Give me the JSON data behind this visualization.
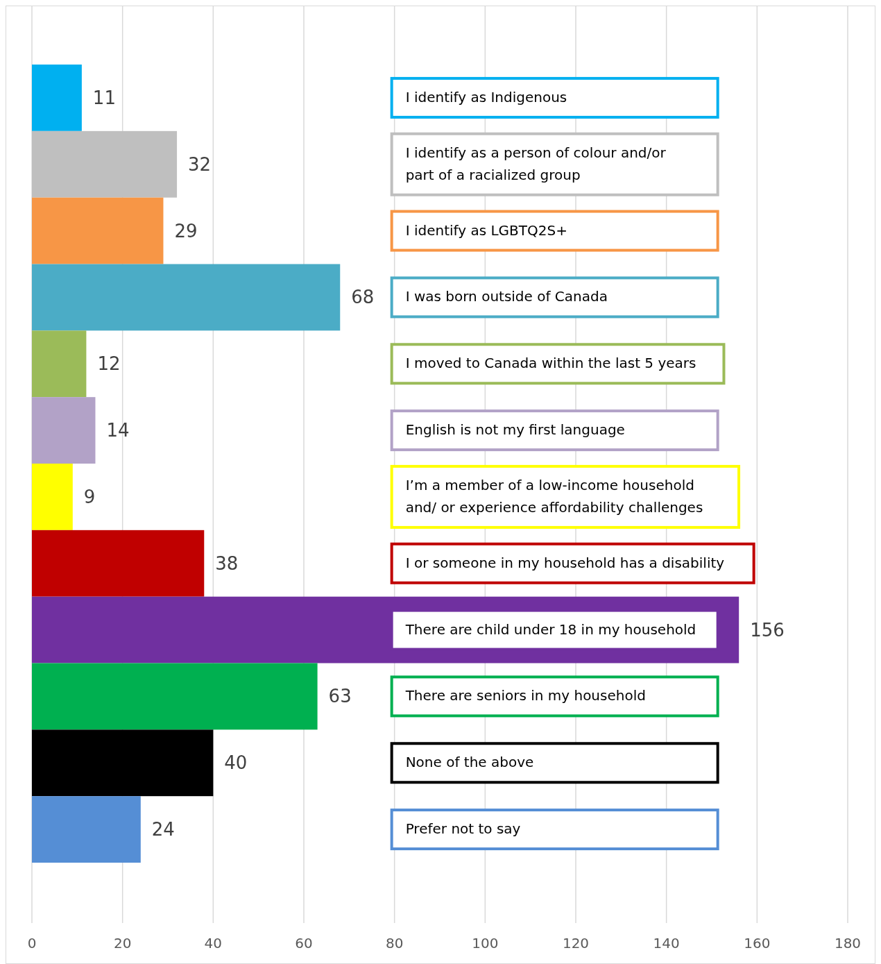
{
  "chart_data": {
    "type": "bar",
    "orientation": "horizontal",
    "categories": [
      "I identify as Indigenous",
      "I identify as a person of colour and/or part of a racialized group",
      "I identify as LGBTQ2S+",
      "I was born outside of Canada",
      "I moved to Canada within the last 5 years",
      "English is not my first language",
      "I’m a member of a low-income household and/ or experience affordability challenges",
      "I or someone in my household has a disability",
      "There are child under 18 in my household",
      "There are seniors in my household",
      "None of the above",
      "Prefer not to say"
    ],
    "values": [
      11,
      32,
      29,
      68,
      12,
      14,
      9,
      38,
      156,
      63,
      40,
      24
    ],
    "colors": [
      "#00b0f0",
      "#bfbfbf",
      "#f79646",
      "#4bacc6",
      "#9bbb59",
      "#b2a2c7",
      "#ffff00",
      "#c00000",
      "#7030a0",
      "#00b050",
      "#000000",
      "#558ed5"
    ],
    "xlim": [
      0,
      180
    ],
    "xticks": [
      0,
      20,
      40,
      60,
      80,
      100,
      120,
      140,
      160,
      180
    ],
    "grid": "x",
    "data_labels": true
  }
}
